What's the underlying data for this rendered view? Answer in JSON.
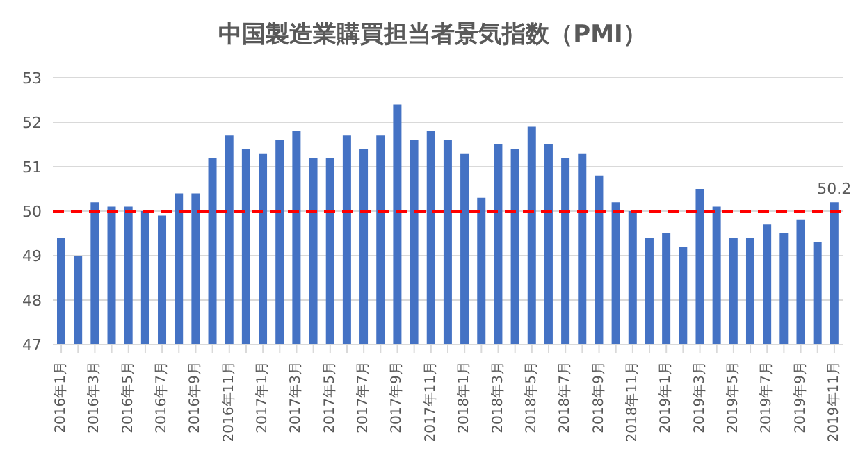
{
  "chart_data": {
    "type": "bar",
    "title": "中国製造業購買担当者景気指数（PMI）",
    "categories": [
      "2016年1月",
      null,
      "2016年3月",
      null,
      "2016年5月",
      null,
      "2016年7月",
      null,
      "2016年9月",
      null,
      "2016年11月",
      null,
      "2017年1月",
      null,
      "2017年3月",
      null,
      "2017年5月",
      null,
      "2017年7月",
      null,
      "2017年9月",
      null,
      "2017年11月",
      null,
      "2018年1月",
      null,
      "2018年3月",
      null,
      "2018年5月",
      null,
      "2018年7月",
      null,
      "2018年9月",
      null,
      "2018年11月",
      null,
      "2019年1月",
      null,
      "2019年3月",
      null,
      "2019年5月",
      null,
      "2019年7月",
      null,
      "2019年9月",
      null,
      "2019年11月"
    ],
    "values": [
      49.4,
      49.0,
      50.2,
      50.1,
      50.1,
      50.0,
      49.9,
      50.4,
      50.4,
      51.2,
      51.7,
      51.4,
      51.3,
      51.6,
      51.8,
      51.2,
      51.2,
      51.7,
      51.4,
      51.7,
      52.4,
      51.6,
      51.8,
      51.6,
      51.3,
      50.3,
      51.5,
      51.4,
      51.9,
      51.5,
      51.2,
      51.3,
      50.8,
      50.2,
      50.0,
      49.4,
      49.5,
      49.2,
      50.5,
      50.1,
      49.4,
      49.4,
      49.7,
      49.5,
      49.8,
      49.3,
      50.2
    ],
    "value_labels": [
      null,
      null,
      null,
      null,
      null,
      null,
      null,
      null,
      null,
      null,
      null,
      null,
      null,
      null,
      null,
      null,
      null,
      null,
      null,
      null,
      null,
      null,
      null,
      null,
      null,
      null,
      null,
      null,
      null,
      null,
      null,
      null,
      null,
      null,
      null,
      null,
      null,
      null,
      null,
      null,
      null,
      null,
      null,
      null,
      null,
      null,
      "50.2"
    ],
    "color": "#4472c4",
    "ylim": [
      47,
      53
    ],
    "yticks": [
      47,
      48,
      49,
      50,
      51,
      52,
      53
    ],
    "grid": "y",
    "ref_lines": [
      {
        "axis": "y",
        "value": 50,
        "color": "#ff0000",
        "line_style": "dashed"
      }
    ]
  }
}
